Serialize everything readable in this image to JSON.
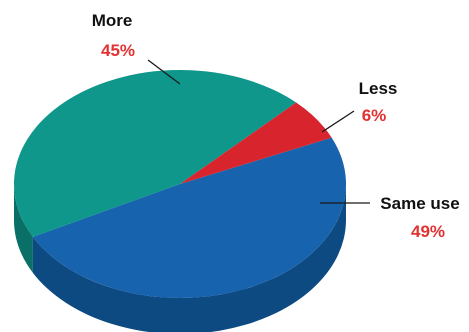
{
  "chart_data": {
    "type": "pie",
    "title": "",
    "slices": [
      {
        "label": "Same use",
        "value": 49,
        "value_label": "49%",
        "color": "#1763ad",
        "side_color": "#0e4a82"
      },
      {
        "label": "More",
        "value": 45,
        "value_label": "45%",
        "color": "#0e978a",
        "side_color": "#0a6f66"
      },
      {
        "label": "Less",
        "value": 6,
        "value_label": "6%",
        "color": "#d8242d",
        "side_color": "#9d1a20"
      }
    ],
    "label_color": "#111111",
    "value_label_color": "#e23232",
    "style": "3d"
  }
}
